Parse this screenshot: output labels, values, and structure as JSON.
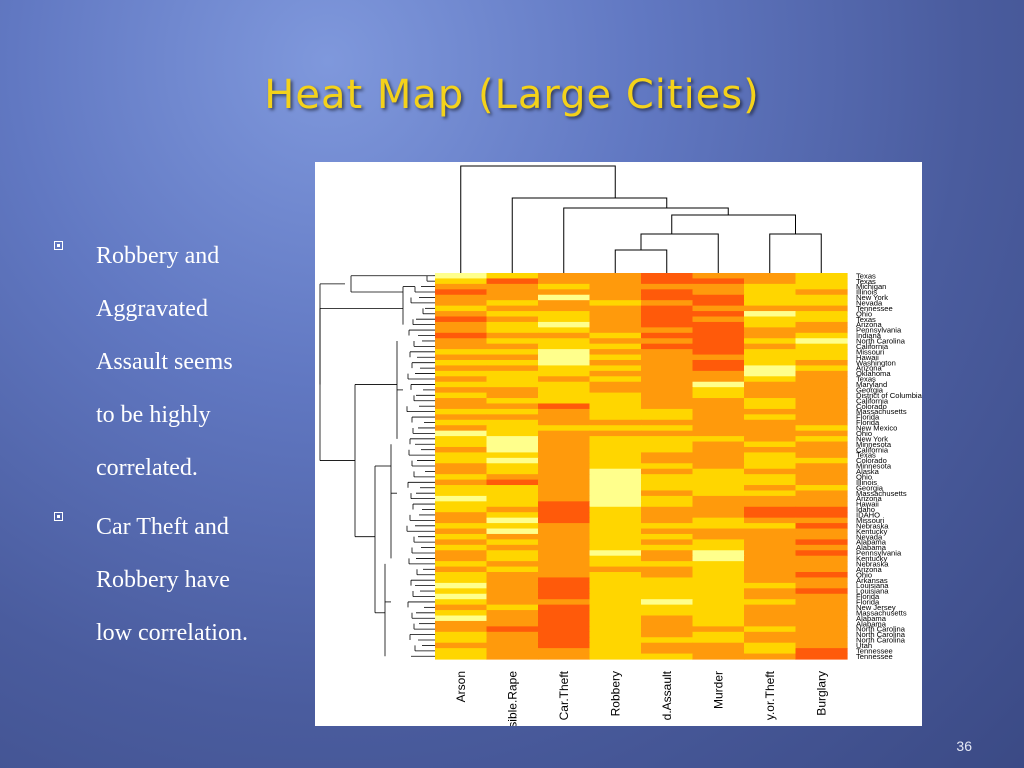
{
  "slide": {
    "title": "Heat Map (Large Cities)",
    "page_number": "36",
    "bullets": [
      {
        "lines": [
          "Robbery and",
          "Aggravated",
          "Assault seems",
          "to be highly",
          "correlated."
        ]
      },
      {
        "lines": [
          "Car Theft and",
          "Robbery have",
          "low correlation."
        ]
      }
    ]
  },
  "colors": {
    "title": "#f4d21a",
    "heat_scale": [
      "#e8150d",
      "#ff5a0a",
      "#ff9a0c",
      "#ffd600",
      "#ffff8c"
    ]
  },
  "chart_data": {
    "type": "heatmap",
    "columns": [
      "Arson",
      "Forcible.Rape",
      "Car.Theft",
      "Robbery",
      "Aggravated.Assault",
      "Murder",
      "Larceny.or.Theft",
      "Burglary"
    ],
    "column_labels_visible": [
      "Arson",
      "sible.Rape",
      "Car.Theft",
      "Robbery",
      "d.Assault",
      "Murder",
      "y.or.Theft",
      "Burglary"
    ],
    "rows": [
      "Texas",
      "Texas",
      "Michigan",
      "Illinois",
      "New York",
      "Nevada",
      "Tennessee",
      "Ohio",
      "Texas",
      "Arizona",
      "Pennsylvania",
      "Indiana",
      "North Carolina",
      "California",
      "Missouri",
      "Hawaii",
      "Washington",
      "Arizona",
      "Oklahoma",
      "Texas",
      "Maryland",
      "Georgia",
      "District of Columbia",
      "California",
      "Colorado",
      "Massachusetts",
      "Florida",
      "Florida",
      "New Mexico",
      "Ohio",
      "New York",
      "Minnesota",
      "California",
      "Texas",
      "Colorado",
      "Minnesota",
      "Alaska",
      "Ohio",
      "Illinois",
      "Georgia",
      "Massachusetts",
      "Arizona",
      "Hawaii",
      "Idaho",
      "IDAHO",
      "Missouri",
      "Nebraska",
      "Kentucky",
      "Nevada",
      "Alabama",
      "Alabama",
      "Pennsylvania",
      "Kentucky",
      "Nebraska",
      "Arizona",
      "Ohio",
      "Arkansas",
      "Louisiana",
      "Louisiana",
      "Florida",
      "Florida",
      "New Jersey",
      "Massachusetts",
      "Alabama",
      "Alabama",
      "North Carolina",
      "North Carolina",
      "North Carolina",
      "Utah",
      "Tennessee",
      "Tennessee"
    ],
    "matrix_levels": [
      [
        4,
        3,
        2,
        2,
        1,
        2,
        2,
        3
      ],
      [
        3,
        1,
        2,
        2,
        1,
        1,
        2,
        3
      ],
      [
        2,
        2,
        3,
        2,
        2,
        2,
        3,
        3
      ],
      [
        1,
        2,
        2,
        2,
        1,
        2,
        3,
        2
      ],
      [
        2,
        2,
        4,
        2,
        1,
        1,
        3,
        3
      ],
      [
        2,
        3,
        2,
        3,
        2,
        1,
        3,
        3
      ],
      [
        3,
        2,
        2,
        2,
        1,
        2,
        2,
        2
      ],
      [
        2,
        3,
        3,
        2,
        1,
        1,
        4,
        3
      ],
      [
        1,
        2,
        3,
        2,
        1,
        2,
        3,
        3
      ],
      [
        2,
        3,
        4,
        2,
        1,
        1,
        3,
        2
      ],
      [
        2,
        3,
        3,
        2,
        2,
        1,
        2,
        2
      ],
      [
        1,
        2,
        2,
        3,
        1,
        1,
        2,
        3
      ],
      [
        2,
        3,
        3,
        2,
        2,
        1,
        3,
        4
      ],
      [
        2,
        2,
        3,
        3,
        1,
        1,
        2,
        3
      ],
      [
        3,
        3,
        4,
        2,
        2,
        1,
        3,
        3
      ],
      [
        2,
        2,
        4,
        3,
        2,
        2,
        3,
        3
      ],
      [
        3,
        3,
        4,
        2,
        2,
        1,
        3,
        2
      ],
      [
        2,
        2,
        3,
        3,
        2,
        1,
        4,
        3
      ],
      [
        3,
        3,
        3,
        2,
        2,
        2,
        4,
        2
      ],
      [
        2,
        3,
        2,
        3,
        2,
        2,
        3,
        2
      ],
      [
        3,
        3,
        3,
        2,
        2,
        4,
        2,
        2
      ],
      [
        2,
        2,
        3,
        2,
        2,
        3,
        2,
        2
      ],
      [
        3,
        2,
        3,
        3,
        2,
        3,
        2,
        2
      ],
      [
        2,
        3,
        3,
        3,
        2,
        2,
        3,
        2
      ],
      [
        2,
        2,
        1,
        3,
        2,
        2,
        3,
        2
      ],
      [
        3,
        3,
        2,
        3,
        3,
        2,
        2,
        2
      ],
      [
        2,
        2,
        2,
        3,
        3,
        2,
        3,
        2
      ],
      [
        3,
        3,
        2,
        2,
        2,
        2,
        2,
        2
      ],
      [
        2,
        3,
        3,
        3,
        3,
        2,
        2,
        3
      ],
      [
        4,
        3,
        2,
        2,
        2,
        2,
        2,
        2
      ],
      [
        3,
        4,
        2,
        3,
        3,
        3,
        2,
        3
      ],
      [
        3,
        4,
        2,
        3,
        3,
        2,
        3,
        2
      ],
      [
        2,
        4,
        2,
        3,
        3,
        2,
        2,
        2
      ],
      [
        3,
        3,
        2,
        3,
        2,
        2,
        3,
        2
      ],
      [
        3,
        4,
        2,
        3,
        2,
        2,
        3,
        3
      ],
      [
        2,
        3,
        2,
        3,
        3,
        2,
        3,
        2
      ],
      [
        2,
        3,
        2,
        4,
        2,
        3,
        2,
        2
      ],
      [
        3,
        2,
        2,
        4,
        3,
        3,
        3,
        2
      ],
      [
        2,
        1,
        2,
        4,
        3,
        3,
        3,
        2
      ],
      [
        3,
        3,
        2,
        4,
        3,
        3,
        2,
        3
      ],
      [
        3,
        3,
        2,
        4,
        2,
        3,
        3,
        2
      ],
      [
        4,
        3,
        2,
        4,
        3,
        2,
        2,
        2
      ],
      [
        3,
        3,
        1,
        4,
        3,
        2,
        2,
        2
      ],
      [
        3,
        2,
        1,
        3,
        2,
        2,
        1,
        1
      ],
      [
        2,
        3,
        1,
        3,
        2,
        2,
        1,
        1
      ],
      [
        2,
        4,
        1,
        3,
        2,
        3,
        2,
        2
      ],
      [
        3,
        3,
        2,
        3,
        3,
        3,
        3,
        1
      ],
      [
        2,
        4,
        2,
        3,
        2,
        2,
        2,
        2
      ],
      [
        3,
        2,
        2,
        3,
        3,
        2,
        2,
        2
      ],
      [
        2,
        3,
        2,
        3,
        2,
        3,
        2,
        1
      ],
      [
        3,
        2,
        2,
        3,
        3,
        3,
        2,
        2
      ],
      [
        2,
        3,
        2,
        4,
        2,
        4,
        2,
        1
      ],
      [
        2,
        3,
        2,
        3,
        2,
        4,
        2,
        2
      ],
      [
        3,
        2,
        2,
        3,
        3,
        3,
        2,
        2
      ],
      [
        2,
        3,
        2,
        2,
        2,
        3,
        2,
        2
      ],
      [
        3,
        2,
        2,
        3,
        2,
        3,
        2,
        1
      ],
      [
        3,
        2,
        1,
        3,
        3,
        3,
        2,
        2
      ],
      [
        4,
        2,
        1,
        3,
        3,
        3,
        3,
        2
      ],
      [
        3,
        2,
        1,
        3,
        3,
        3,
        2,
        1
      ],
      [
        4,
        2,
        1,
        3,
        3,
        3,
        2,
        2
      ],
      [
        3,
        2,
        2,
        3,
        4,
        3,
        3,
        2
      ],
      [
        2,
        3,
        1,
        3,
        3,
        3,
        2,
        2
      ],
      [
        3,
        2,
        1,
        3,
        3,
        3,
        2,
        2
      ],
      [
        4,
        2,
        1,
        3,
        2,
        3,
        2,
        2
      ],
      [
        2,
        2,
        1,
        3,
        2,
        3,
        2,
        2
      ],
      [
        2,
        1,
        1,
        3,
        2,
        2,
        3,
        2
      ],
      [
        3,
        2,
        1,
        3,
        2,
        3,
        2,
        2
      ],
      [
        3,
        2,
        1,
        3,
        3,
        3,
        2,
        2
      ],
      [
        2,
        2,
        1,
        3,
        2,
        2,
        3,
        2
      ],
      [
        3,
        2,
        2,
        3,
        2,
        2,
        3,
        1
      ],
      [
        3,
        2,
        2,
        3,
        3,
        2,
        2,
        1
      ]
    ],
    "grid": false
  }
}
